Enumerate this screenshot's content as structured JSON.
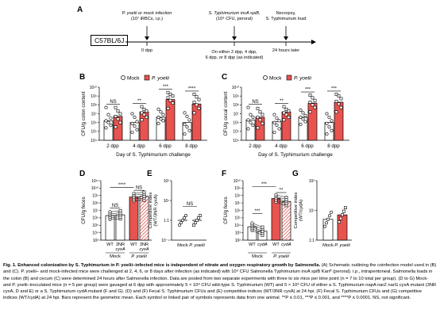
{
  "panelA": {
    "letter": "A",
    "box": "C57BL/6J",
    "event1": [
      "P. yoelii or mock infection",
      "(10⁷ iRBCs, i.p.)"
    ],
    "event2": [
      "S. Typhimurium invA spiB,",
      "(10⁹ CFU, peroral)"
    ],
    "event3": [
      "Necropsy,",
      "S. Typhimurium load"
    ],
    "day0": "0 dpp",
    "middle": [
      "On either 2 dpp, 4 dpp,",
      "6 dpp, or 8 dpp (as indicated)"
    ],
    "later": "24 hours later"
  },
  "panelB": {
    "letter": "B",
    "legend": [
      "Mock",
      "P. yoelii"
    ],
    "ylabel": "CFU/g colon content",
    "xlabel": "Day of S. Typhimurium challenge",
    "chart_data": {
      "type": "bar",
      "categories": [
        "2 dpp",
        "4 dpp",
        "6 dpp",
        "8 dpp"
      ],
      "ylim_log10": [
        4,
        10
      ],
      "yticks": [
        "10⁴",
        "10⁵",
        "10⁶",
        "10⁷",
        "10⁸",
        "10⁹",
        "10¹⁰"
      ],
      "significance": [
        "NS",
        "**",
        "***",
        "****"
      ],
      "series": [
        {
          "name": "Mock",
          "values": [
            6.2,
            6.0,
            6.6,
            6.0
          ],
          "points": [
            [
              7.7,
              6.9,
              6.5,
              6.2,
              6.0,
              5.7,
              5.4
            ],
            [
              7.0,
              6.6,
              6.1,
              5.9,
              5.6,
              5.2,
              4.9
            ],
            [
              7.5,
              7.2,
              6.9,
              6.6,
              6.4,
              6.2,
              5.9
            ],
            [
              7.1,
              6.7,
              6.3,
              5.8,
              5.5,
              5.1,
              4.7
            ]
          ]
        },
        {
          "name": "P. yoelii",
          "values": [
            6.7,
            7.2,
            8.6,
            8.1
          ],
          "points": [
            [
              7.7,
              7.3,
              7.0,
              6.7,
              6.4,
              6.0,
              5.5
            ],
            [
              7.8,
              7.5,
              7.3,
              7.1,
              6.9,
              6.6,
              6.3
            ],
            [
              9.4,
              9.2,
              9.0,
              8.8,
              8.5,
              8.2,
              7.6
            ],
            [
              9.2,
              8.9,
              8.6,
              8.3,
              8.0,
              7.6,
              7.1
            ]
          ]
        }
      ]
    }
  },
  "panelC": {
    "letter": "C",
    "legend": [
      "Mock",
      "P. yoelii"
    ],
    "ylabel": "CFU/g cecal content",
    "xlabel": "Day of S. Typhimurium challenge",
    "chart_data": {
      "type": "bar",
      "categories": [
        "2 dpp",
        "4 dpp",
        "6 dpp",
        "8 dpp"
      ],
      "ylim_log10": [
        4,
        10
      ],
      "yticks": [
        "10⁴",
        "10⁵",
        "10⁶",
        "10⁷",
        "10⁸",
        "10⁹",
        "10¹⁰"
      ],
      "significance": [
        "NS",
        "**",
        "***",
        "***"
      ],
      "series": [
        {
          "name": "Mock",
          "values": [
            6.3,
            6.1,
            6.6,
            6.0
          ],
          "points": [
            [
              7.7,
              6.9,
              6.6,
              6.3,
              6.0,
              5.7,
              5.3
            ],
            [
              6.9,
              6.5,
              6.2,
              6.0,
              5.7,
              5.3,
              4.9
            ],
            [
              7.4,
              7.1,
              6.8,
              6.6,
              6.4,
              6.1,
              5.8
            ],
            [
              7.0,
              6.6,
              6.2,
              5.9,
              5.5,
              5.1,
              4.7
            ]
          ]
        },
        {
          "name": "P. yoelii",
          "values": [
            6.6,
            7.2,
            8.2,
            8.3
          ],
          "points": [
            [
              7.6,
              7.2,
              6.9,
              6.6,
              6.3,
              5.9,
              5.4
            ],
            [
              7.8,
              7.5,
              7.3,
              7.1,
              6.9,
              6.6,
              6.3
            ],
            [
              9.1,
              8.8,
              8.5,
              8.3,
              8.0,
              7.7,
              7.2
            ],
            [
              9.2,
              9.0,
              8.7,
              8.4,
              8.1,
              7.7,
              7.2
            ]
          ]
        }
      ]
    }
  },
  "panelD": {
    "letter": "D",
    "ylabel": "CFU/g feces",
    "chart_data": {
      "type": "bar",
      "categories": [
        "WT",
        "3NR cyxA",
        "WT",
        "3NR cyxA"
      ],
      "groups": [
        "Mock",
        "P. yoelii"
      ],
      "ylim_log10": [
        3,
        11
      ],
      "yticks": [
        "10³",
        "10⁴",
        "10⁵",
        "10⁶",
        "10⁷",
        "10⁸",
        "10⁹",
        "10¹⁰",
        "10¹¹"
      ],
      "significance": [
        "NS",
        "****",
        "NS"
      ],
      "values": [
        6.3,
        6.4,
        8.8,
        8.9
      ]
    }
  },
  "panelE": {
    "letter": "E",
    "ylabel": [
      "Competitive index",
      "(WT/3NR cyxA)"
    ],
    "chart_data": {
      "type": "bar",
      "categories": [
        "Mock",
        "P. yoelii"
      ],
      "ylim_log10": [
        -1,
        2
      ],
      "yticks": [
        "10⁻¹",
        "1:1",
        "10¹",
        "10²"
      ],
      "significance": [
        "NS"
      ],
      "values": [
        0.0,
        0.0
      ]
    }
  },
  "panelF": {
    "letter": "F",
    "ylabel": "CFU/g feces",
    "chart_data": {
      "type": "bar",
      "categories": [
        "WT",
        "cydA",
        "WT",
        "cydA"
      ],
      "groups": [
        "Mock",
        "P. yoelii"
      ],
      "ylim_log10": [
        2,
        10
      ],
      "yticks": [
        "10²",
        "10³",
        "10⁴",
        "10⁵",
        "10⁶",
        "10⁷",
        "10⁸",
        "10⁹",
        "10¹⁰"
      ],
      "significance": [
        "***",
        "***",
        "**"
      ],
      "values": [
        3.8,
        3.2,
        7.6,
        7.2
      ]
    }
  },
  "panelG": {
    "letter": "G",
    "ylabel": [
      "Competitive index",
      "(WT/cydA)"
    ],
    "chart_data": {
      "type": "bar",
      "categories": [
        "Mock",
        "P. yoelii"
      ],
      "ylim_log10": [
        0,
        2
      ],
      "yticks": [
        "1:1",
        "10¹",
        "10²"
      ],
      "values": [
        0.7,
        0.85
      ]
    }
  },
  "caption": {
    "bold": "Fig. 1. Enhanced colonization by S. Typhimurium in P. yoelii–infected mice is independent of nitrate and oxygen respiratory growth by Salmonella.",
    "text": " (A) Schematic outlining the coinfection model used in (B) and (C). P. yoelii– and mock-infected mice were challenged at 2, 4, 6, or 8 days after infection (as indicated) with 10⁹ CFU Salmonella Typhimurium invA spiB Kanᴿ (peroral). i.p., intraperitoneal. Salmonella loads in the colon (B) and cecum (C) were determined 24 hours after Salmonella infection. Data are pooled from two separate experiments with three to six mice per time point (n = 7 to 10 total per group). (D to G) Mock- and P. yoelii–inoculated mice (n = 5 per group) were gavaged at 6 dpp with approximately 5 × 10⁸ CFU wild-type S. Typhimurium (WT) and 5 × 10⁸ CFU of either a S. Typhimurium napA narZ narG cyxA mutant (3NR cyxA, D and E) or a S. Typhimurium cydA mutant (F and G). (D) and (F) Fecal S. Typhimurium CFUs and (E) competitive indices (WT/3NR cyxA) at 24 hpi. (F) Fecal S. Typhimurium CFUs and (G) competitive indices (WT/cydA) at 24 hpi. Bars represent the geometric mean. Each symbol or linked pair of symbols represents data from one animal. **P ≤ 0.01, ***P ≤ 0.001, and ****P ≤ 0.0001. NS, not significant."
  },
  "colors": {
    "mock": "#ffffff",
    "pyoelii": "#e8534f",
    "stroke": "#000000"
  }
}
